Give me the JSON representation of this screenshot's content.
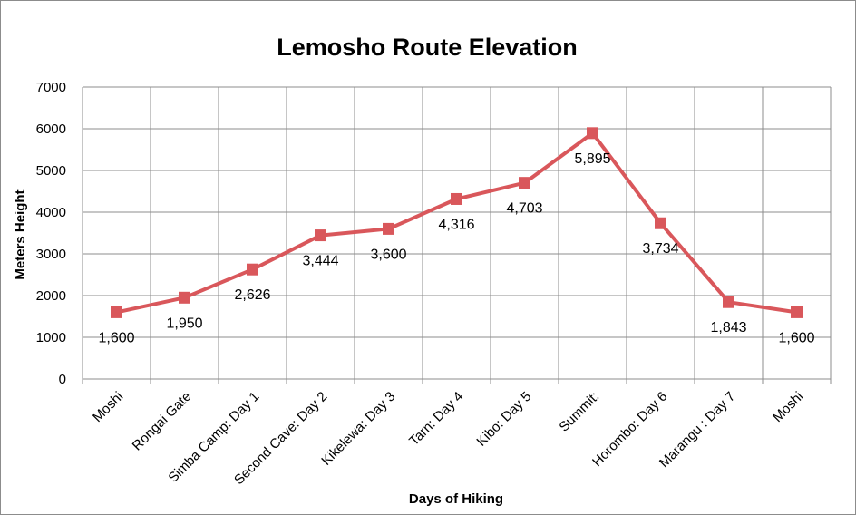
{
  "chart_data": {
    "type": "line",
    "title": "Lemosho Route Elevation",
    "xlabel": "Days of Hiking",
    "ylabel": "Meters Height",
    "ylim": [
      0,
      7000
    ],
    "yticks": [
      "0",
      "1000",
      "2000",
      "3000",
      "4000",
      "5000",
      "6000",
      "7000"
    ],
    "grid": true,
    "legend": "none",
    "categories": [
      "Moshi",
      "Rongai Gate",
      "Simba Camp: Day 1",
      "Second Cave: Day 2",
      "Kikelewa: Day 3",
      "Tarn: Day 4",
      "Kibo: Day 5",
      "Summit:",
      "Horombo: Day 6",
      "Marangu : Day 7",
      "Moshi"
    ],
    "values": [
      1600,
      1950,
      2626,
      3444,
      3600,
      4316,
      4703,
      5895,
      3734,
      1843,
      1600
    ],
    "data_labels": [
      "1,600",
      "1,950",
      "2,626",
      "3,444",
      "3,600",
      "4,316",
      "4,703",
      "5,895",
      "3,734",
      "1,843",
      "1,600"
    ],
    "series_color": "#d9575b",
    "grid_color": "#8c8c8c"
  }
}
